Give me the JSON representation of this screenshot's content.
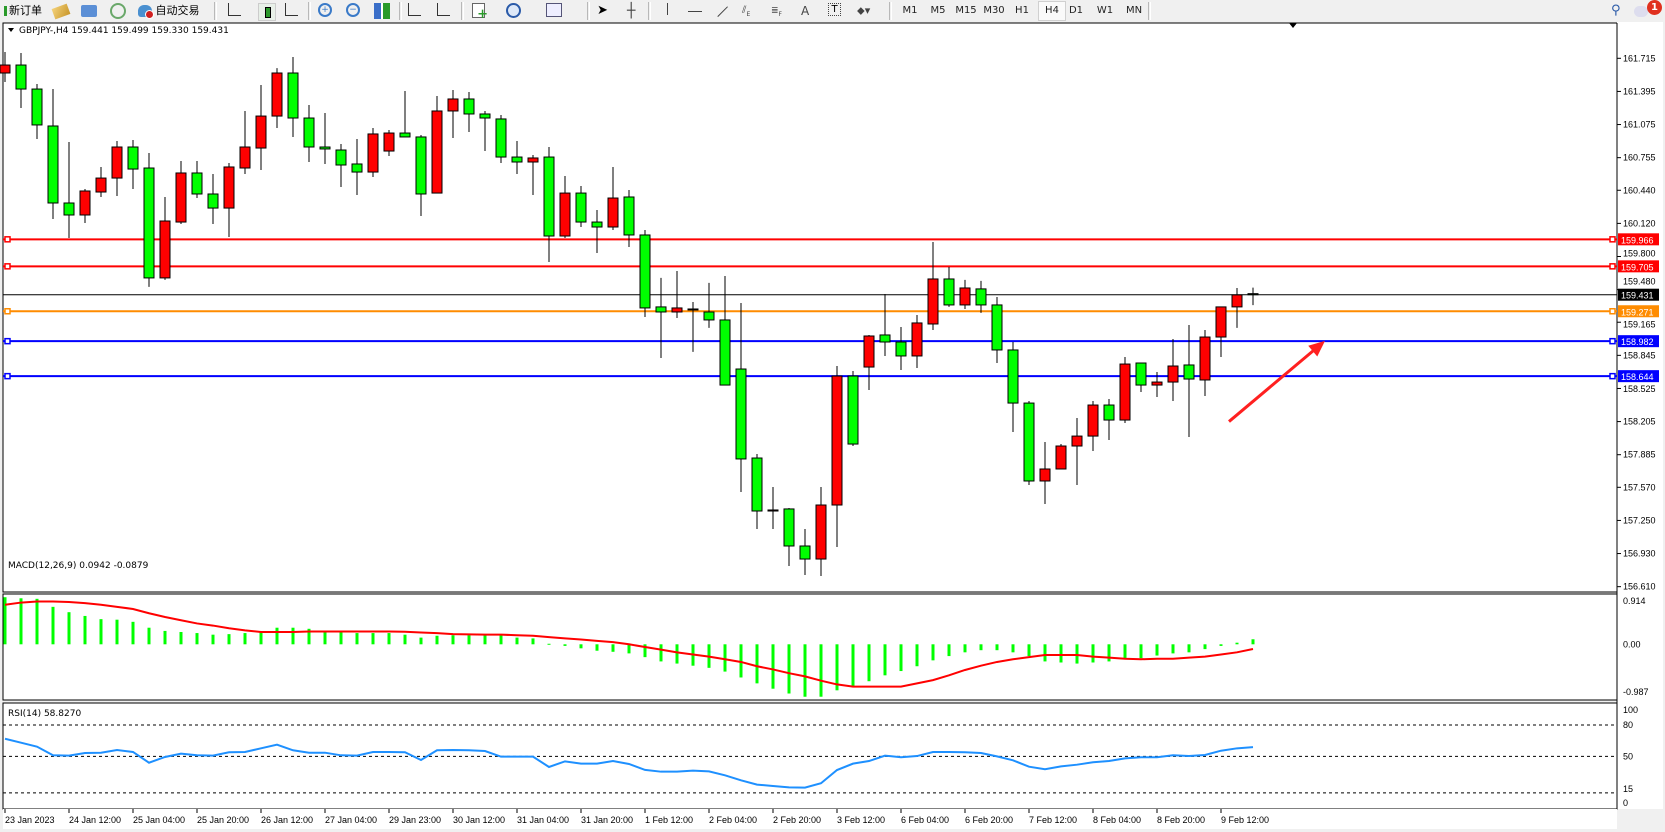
{
  "toolbar": {
    "new_order_label": "新订单",
    "auto_trading_label": "自动交易",
    "timeframes": [
      "M1",
      "M5",
      "M15",
      "M30",
      "H1",
      "H4",
      "D1",
      "W1",
      "MN"
    ],
    "active_timeframe": "H4",
    "notification_count": "1",
    "icons": [
      "new-order-icon",
      "market-watch-icon",
      "data-window-icon",
      "navigator-icon",
      "auto-trading-icon",
      "bar-chart-icon",
      "candlestick-icon",
      "line-chart-icon",
      "zoom-in-icon",
      "zoom-out-icon",
      "tile-windows-icon",
      "autoscroll-icon",
      "chart-shift-icon",
      "indicators-icon",
      "periods-icon",
      "templates-icon",
      "cursor-icon",
      "crosshair-icon",
      "vertical-line-icon",
      "horizontal-line-icon",
      "trendline-icon",
      "equidistant-channel-icon",
      "fibonacci-icon",
      "text-icon",
      "text-label-icon",
      "arrows-icon",
      "search-icon",
      "chat-icon"
    ]
  },
  "chart": {
    "title": "GBPJPY-,H4  159.441 159.499 159.330 159.431",
    "symbol": "GBPJPY-",
    "timeframe": "H4",
    "colors": {
      "bull": "#ff0000",
      "bear": "#00ff00",
      "background": "#ffffff",
      "grid": "#000000"
    },
    "price_ticks": [
      "161.715",
      "161.395",
      "161.075",
      "160.755",
      "160.440",
      "160.120",
      "159.800",
      "159.480",
      "159.165",
      "158.845",
      "158.525",
      "158.205",
      "157.885",
      "157.570",
      "157.250",
      "156.930",
      "156.610"
    ],
    "price_range": [
      156.61,
      161.715
    ],
    "current_price": "159.431",
    "hlines": [
      {
        "price": "159.966",
        "color": "#ff0000"
      },
      {
        "price": "159.705",
        "color": "#ff0000"
      },
      {
        "price": "159.271",
        "color": "#ff8c00"
      },
      {
        "price": "158.982",
        "color": "#0000ff"
      },
      {
        "price": "158.644",
        "color": "#0000ff"
      }
    ],
    "arrow": {
      "color": "#ff2020",
      "direction": "up-right",
      "from": {
        "candle": 76.5,
        "price": 158.205
      },
      "to": {
        "candle": 82.5,
        "price": 158.985
      }
    },
    "time_labels": [
      "23 Jan 2023",
      "24 Jan 12:00",
      "25 Jan 04:00",
      "25 Jan 20:00",
      "26 Jan 12:00",
      "27 Jan 04:00",
      "29 Jan 23:00",
      "30 Jan 12:00",
      "31 Jan 04:00",
      "31 Jan 20:00",
      "1 Feb 12:00",
      "2 Feb 04:00",
      "2 Feb 20:00",
      "3 Feb 12:00",
      "6 Feb 04:00",
      "6 Feb 20:00",
      "7 Feb 12:00",
      "8 Feb 04:00",
      "8 Feb 20:00",
      "9 Feb 12:00"
    ],
    "time_label_every_n_bars": 4
  },
  "chart_data": {
    "type": "candlestick",
    "ohlc_format": [
      "open",
      "high",
      "low",
      "close"
    ],
    "candles": [
      [
        161.573,
        161.776,
        161.486,
        161.65
      ],
      [
        161.65,
        161.766,
        161.235,
        161.418
      ],
      [
        161.418,
        161.467,
        160.935,
        161.071
      ],
      [
        161.061,
        161.418,
        160.162,
        160.317
      ],
      [
        160.317,
        160.906,
        159.979,
        160.201
      ],
      [
        160.201,
        160.452,
        160.124,
        160.433
      ],
      [
        160.423,
        160.665,
        160.375,
        160.558
      ],
      [
        160.558,
        160.916,
        160.384,
        160.858
      ],
      [
        160.858,
        160.926,
        160.452,
        160.645
      ],
      [
        160.655,
        160.8,
        159.506,
        159.593
      ],
      [
        159.593,
        160.375,
        159.574,
        160.143
      ],
      [
        160.133,
        160.723,
        160.114,
        160.607
      ],
      [
        160.607,
        160.723,
        160.365,
        160.404
      ],
      [
        160.404,
        160.597,
        160.114,
        160.268
      ],
      [
        160.268,
        160.703,
        159.988,
        160.665
      ],
      [
        160.655,
        161.206,
        160.597,
        160.858
      ],
      [
        160.848,
        161.457,
        160.636,
        161.157
      ],
      [
        161.157,
        161.62,
        161.042,
        161.573
      ],
      [
        161.573,
        161.728,
        160.955,
        161.138
      ],
      [
        161.138,
        161.264,
        160.713,
        160.858
      ],
      [
        160.858,
        161.186,
        160.694,
        160.839
      ],
      [
        160.829,
        160.887,
        160.471,
        160.684
      ],
      [
        160.694,
        160.935,
        160.394,
        160.616
      ],
      [
        160.616,
        161.042,
        160.568,
        160.984
      ],
      [
        160.819,
        161.022,
        160.771,
        160.993
      ],
      [
        160.993,
        161.399,
        160.955,
        160.955
      ],
      [
        160.955,
        160.974,
        160.191,
        160.404
      ],
      [
        160.413,
        161.351,
        160.413,
        161.206
      ],
      [
        161.206,
        161.409,
        160.945,
        161.322
      ],
      [
        161.322,
        161.389,
        161.003,
        161.177
      ],
      [
        161.177,
        161.206,
        160.819,
        161.138
      ],
      [
        161.129,
        161.167,
        160.703,
        160.761
      ],
      [
        160.761,
        160.916,
        160.597,
        160.713
      ],
      [
        160.713,
        160.781,
        160.394,
        160.752
      ],
      [
        160.761,
        160.858,
        159.747,
        159.998
      ],
      [
        159.998,
        160.578,
        159.979,
        160.413
      ],
      [
        160.413,
        160.481,
        160.085,
        160.133
      ],
      [
        160.133,
        160.249,
        159.834,
        160.085
      ],
      [
        160.085,
        160.665,
        160.056,
        160.365
      ],
      [
        160.375,
        160.442,
        159.892,
        160.008
      ],
      [
        160.008,
        160.056,
        159.216,
        159.303
      ],
      [
        159.313,
        159.593,
        158.819,
        159.264
      ],
      [
        159.264,
        159.66,
        159.206,
        159.303
      ],
      [
        159.293,
        159.361,
        158.878,
        159.29
      ],
      [
        159.264,
        159.545,
        159.11,
        159.187
      ],
      [
        159.187,
        159.612,
        158.558,
        158.558
      ],
      [
        158.713,
        159.351,
        157.525,
        157.844
      ],
      [
        157.853,
        157.892,
        157.167,
        157.341
      ],
      [
        157.341,
        157.573,
        157.167,
        157.351
      ],
      [
        157.361,
        157.37,
        156.81,
        157.003
      ],
      [
        157.003,
        157.167,
        156.723,
        156.877
      ],
      [
        156.877,
        157.573,
        156.713,
        157.399
      ],
      [
        157.399,
        158.742,
        156.993,
        158.645
      ],
      [
        158.645,
        158.694,
        157.969,
        157.988
      ],
      [
        158.732,
        159.042,
        158.51,
        159.032
      ],
      [
        159.042,
        159.438,
        158.839,
        158.974
      ],
      [
        158.974,
        159.119,
        158.703,
        158.839
      ],
      [
        158.839,
        159.235,
        158.723,
        159.158
      ],
      [
        159.148,
        159.94,
        159.09,
        159.583
      ],
      [
        159.583,
        159.699,
        159.313,
        159.332
      ],
      [
        159.332,
        159.574,
        159.293,
        159.496
      ],
      [
        159.487,
        159.564,
        159.255,
        159.332
      ],
      [
        159.332,
        159.409,
        158.771,
        158.897
      ],
      [
        158.897,
        158.974,
        158.104,
        158.384
      ],
      [
        158.384,
        158.404,
        157.592,
        157.631
      ],
      [
        157.631,
        158.008,
        157.409,
        157.747
      ],
      [
        157.747,
        157.988,
        157.747,
        157.969
      ],
      [
        157.969,
        158.24,
        157.592,
        158.065
      ],
      [
        158.065,
        158.404,
        157.921,
        158.365
      ],
      [
        158.365,
        158.423,
        158.027,
        158.22
      ],
      [
        158.22,
        158.829,
        158.191,
        158.761
      ],
      [
        158.771,
        158.771,
        158.491,
        158.558
      ],
      [
        158.558,
        158.684,
        158.442,
        158.587
      ],
      [
        158.587,
        159.003,
        158.404,
        158.742
      ],
      [
        158.752,
        159.138,
        158.056,
        158.616
      ],
      [
        158.607,
        159.09,
        158.452,
        159.022
      ],
      [
        159.022,
        159.313,
        158.829,
        159.313
      ],
      [
        159.313,
        159.496,
        159.11,
        159.429
      ],
      [
        159.441,
        159.499,
        159.33,
        159.431
      ]
    ],
    "macd": {
      "label": "MACD(12,26,9) 0.0942 -0.0879",
      "ticks": [
        "0.914",
        "0.00",
        "-0.987"
      ],
      "range": [
        -0.987,
        0.914
      ],
      "histogram_color": "#00ff00",
      "signal_color": "#ff0000",
      "histogram": [
        0.88,
        0.86,
        0.85,
        0.7,
        0.6,
        0.53,
        0.47,
        0.46,
        0.42,
        0.31,
        0.25,
        0.23,
        0.21,
        0.18,
        0.19,
        0.21,
        0.23,
        0.31,
        0.31,
        0.29,
        0.23,
        0.23,
        0.21,
        0.21,
        0.21,
        0.18,
        0.125,
        0.16,
        0.17,
        0.17,
        0.17,
        0.17,
        0.125,
        0.11,
        0.01,
        -0.03,
        -0.075,
        -0.12,
        -0.14,
        -0.17,
        -0.24,
        -0.32,
        -0.36,
        -0.4,
        -0.44,
        -0.51,
        -0.62,
        -0.73,
        -0.83,
        -0.92,
        -0.98,
        -0.98,
        -0.86,
        -0.8,
        -0.69,
        -0.58,
        -0.5,
        -0.41,
        -0.3,
        -0.22,
        -0.15,
        -0.11,
        -0.11,
        -0.15,
        -0.22,
        -0.32,
        -0.34,
        -0.36,
        -0.34,
        -0.32,
        -0.26,
        -0.26,
        -0.21,
        -0.17,
        -0.15,
        -0.09,
        -0.03,
        0.03,
        0.0942
      ],
      "signal": [
        0.74,
        0.78,
        0.8,
        0.8,
        0.79,
        0.77,
        0.74,
        0.7,
        0.66,
        0.58,
        0.51,
        0.45,
        0.39,
        0.35,
        0.3,
        0.26,
        0.23,
        0.23,
        0.23,
        0.24,
        0.24,
        0.24,
        0.24,
        0.24,
        0.24,
        0.235,
        0.22,
        0.21,
        0.19,
        0.185,
        0.18,
        0.18,
        0.17,
        0.16,
        0.135,
        0.11,
        0.09,
        0.065,
        0.04,
        0.0,
        -0.05,
        -0.1,
        -0.15,
        -0.19,
        -0.23,
        -0.28,
        -0.33,
        -0.41,
        -0.47,
        -0.54,
        -0.6,
        -0.68,
        -0.75,
        -0.79,
        -0.79,
        -0.79,
        -0.79,
        -0.73,
        -0.67,
        -0.58,
        -0.48,
        -0.4,
        -0.33,
        -0.28,
        -0.24,
        -0.2,
        -0.2,
        -0.2,
        -0.23,
        -0.25,
        -0.27,
        -0.28,
        -0.27,
        -0.27,
        -0.25,
        -0.23,
        -0.19,
        -0.15,
        -0.0879
      ]
    },
    "rsi": {
      "label": "RSI(14) 58.8270",
      "ticks": [
        "100",
        "80",
        "50",
        "15",
        "0"
      ],
      "levels": [
        80,
        50,
        15
      ],
      "range": [
        0,
        100
      ],
      "color": "#1e90ff",
      "values": [
        66.9,
        63.1,
        59.3,
        51.0,
        50.7,
        53.2,
        53.5,
        56.1,
        54.2,
        43.9,
        49.4,
        52.6,
        51.0,
        50.7,
        53.9,
        54.2,
        57.7,
        61.2,
        55.8,
        53.5,
        53.5,
        51.0,
        50.7,
        54.2,
        54.2,
        53.9,
        46.5,
        55.8,
        56.1,
        55.8,
        55.1,
        49.7,
        49.7,
        49.7,
        39.8,
        45.2,
        43.0,
        43.0,
        45.5,
        42.7,
        37.0,
        35.3,
        35.3,
        36.3,
        35.6,
        31.8,
        27.0,
        22.9,
        21.6,
        20.3,
        20.0,
        24.2,
        36.9,
        43.0,
        45.5,
        50.7,
        49.1,
        50.3,
        54.2,
        54.2,
        53.9,
        53.2,
        50.0,
        46.2,
        40.1,
        37.6,
        40.4,
        42.0,
        44.3,
        45.5,
        48.1,
        49.1,
        49.1,
        51.0,
        50.3,
        51.3,
        55.4,
        57.7,
        58.827
      ]
    }
  }
}
